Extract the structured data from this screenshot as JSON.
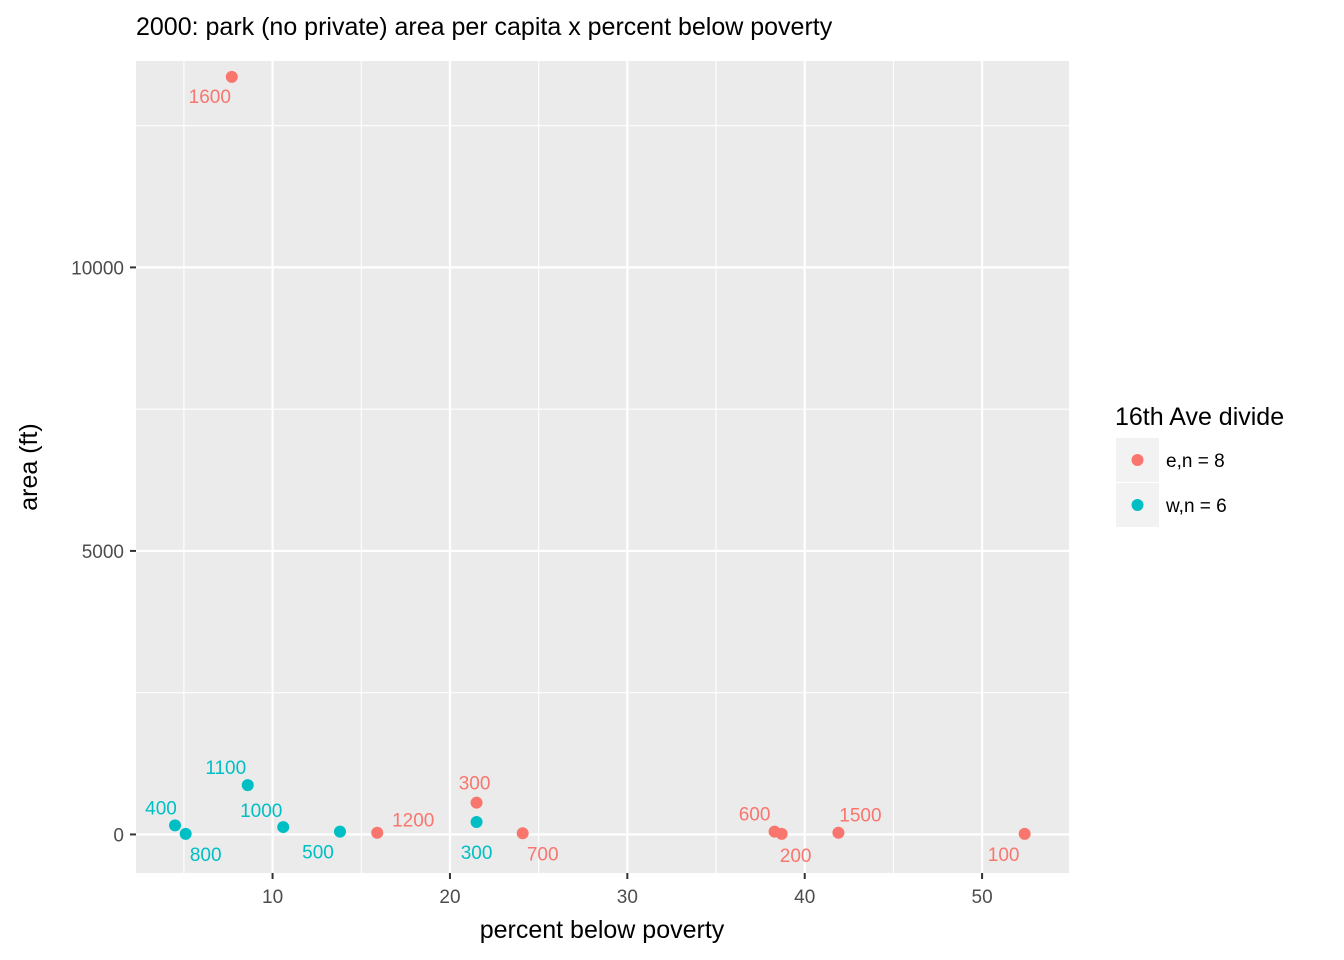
{
  "chart_data": {
    "type": "scatter",
    "title": "2000: park (no private) area per capita x percent below poverty",
    "xlabel": "percent below poverty",
    "ylabel": "area (ft)",
    "xlim": [
      2.3,
      54.9
    ],
    "ylim": [
      -680,
      13640
    ],
    "x_ticks": [
      10,
      20,
      30,
      40,
      50
    ],
    "x_tick_labels": [
      "10",
      "20",
      "30",
      "40",
      "50"
    ],
    "y_ticks": [
      0,
      5000,
      10000
    ],
    "y_tick_labels": [
      "0",
      "5000",
      "10000"
    ],
    "grid": true,
    "legend": {
      "title": "16th Ave divide",
      "position": "right",
      "entries": [
        {
          "label": "e,n = 8",
          "color": "#F8766D"
        },
        {
          "label": "w,n = 6",
          "color": "#00BFC4"
        }
      ]
    },
    "series": [
      {
        "name": "e,n = 8",
        "color": "#F8766D",
        "points": [
          {
            "x": 7.7,
            "y": 13360,
            "label": "1600"
          },
          {
            "x": 15.9,
            "y": 30,
            "label": "1200"
          },
          {
            "x": 21.5,
            "y": 560,
            "label": "300"
          },
          {
            "x": 24.1,
            "y": 20,
            "label": "700"
          },
          {
            "x": 38.3,
            "y": 50,
            "label": "600"
          },
          {
            "x": 38.7,
            "y": 10,
            "label": "200"
          },
          {
            "x": 41.9,
            "y": 30,
            "label": "1500"
          },
          {
            "x": 52.4,
            "y": 10,
            "label": "100"
          }
        ]
      },
      {
        "name": "w,n = 6",
        "color": "#00BFC4",
        "points": [
          {
            "x": 4.5,
            "y": 160,
            "label": "400"
          },
          {
            "x": 5.1,
            "y": 10,
            "label": "800"
          },
          {
            "x": 8.6,
            "y": 870,
            "label": "1100"
          },
          {
            "x": 10.6,
            "y": 130,
            "label": "1000"
          },
          {
            "x": 13.8,
            "y": 50,
            "label": "500"
          },
          {
            "x": 21.5,
            "y": 220,
            "label": "300"
          }
        ]
      }
    ]
  }
}
